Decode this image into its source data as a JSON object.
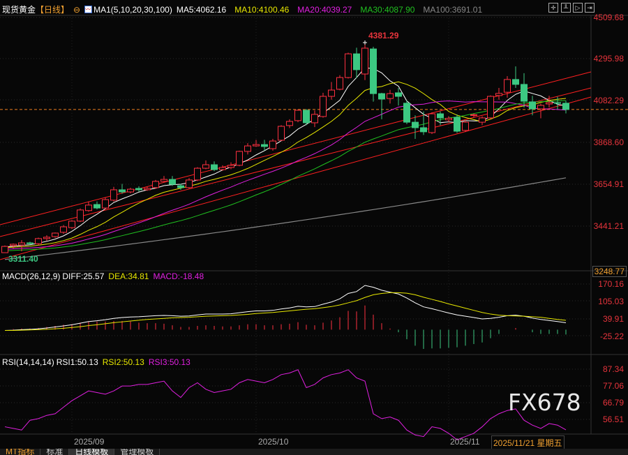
{
  "header": {
    "symbol": "现货黄金",
    "period": "【日线】",
    "ma_title": "MA1(5,10,20,30,100)",
    "ma5": "MA5:4062.16",
    "ma10": "MA10:4100.46",
    "ma20": "MA20:4039.27",
    "ma30": "MA30:4087.90",
    "ma100": "MA100:3691.01"
  },
  "toolbar": [
    "crosshair-icon",
    "chart-icon",
    "play-icon",
    "exit-icon"
  ],
  "price_axis": [
    "4509.68",
    "4295.98",
    "4082.29",
    "3868.60",
    "3654.91",
    "3441.21",
    "3248.77"
  ],
  "annotations": {
    "high": "4381.29",
    "low": "3311.40"
  },
  "macd": {
    "title": "MACD(26,12,9)",
    "diff": "DIFF:25.57",
    "dea": "DEA:34.81",
    "macd": "MACD:-18.48",
    "axis": [
      "170.16",
      "105.03",
      "39.91",
      "-25.22"
    ]
  },
  "rsi": {
    "title": "RSI(14,14,14)",
    "rsi1": "RSI1:50.13",
    "rsi2": "RSI2:50.13",
    "rsi3": "RSI3:50.13",
    "axis": [
      "87.34",
      "77.06",
      "66.79",
      "56.51"
    ]
  },
  "dates": [
    "2025/09",
    "2025/10",
    "2025/11"
  ],
  "cursor_date": "2025/11/21 星期五",
  "watermark": "FX678",
  "tabs": [
    "MT指标",
    "标准",
    "日线模板",
    "管理模板"
  ],
  "colors": {
    "up": "#ff3040",
    "down": "#3cc882",
    "ma5": "#ffffff",
    "ma10": "#e8e800",
    "ma20": "#e020e0",
    "ma30": "#20c020",
    "ma100": "#888888"
  },
  "chart_data": {
    "type": "candlestick",
    "ohlc": [
      [
        3309,
        3346,
        3311.4,
        3341
      ],
      [
        3345,
        3356,
        3330,
        3352
      ],
      [
        3348,
        3373,
        3316,
        3359
      ],
      [
        3359,
        3365,
        3350,
        3355
      ],
      [
        3355,
        3386,
        3345,
        3381
      ],
      [
        3381,
        3398,
        3370,
        3388
      ],
      [
        3391,
        3412,
        3385,
        3409
      ],
      [
        3413,
        3450,
        3405,
        3441
      ],
      [
        3437,
        3475,
        3430,
        3470
      ],
      [
        3470,
        3535,
        3465,
        3527
      ],
      [
        3524,
        3570,
        3518,
        3552
      ],
      [
        3555,
        3570,
        3530,
        3537
      ],
      [
        3537,
        3590,
        3530,
        3580
      ],
      [
        3577,
        3645,
        3570,
        3630
      ],
      [
        3630,
        3660,
        3610,
        3619
      ],
      [
        3619,
        3640,
        3612,
        3633
      ],
      [
        3637,
        3648,
        3620,
        3630
      ],
      [
        3630,
        3645,
        3625,
        3637
      ],
      [
        3641,
        3680,
        3635,
        3673
      ],
      [
        3673,
        3700,
        3668,
        3683
      ],
      [
        3683,
        3700,
        3650,
        3658
      ],
      [
        3651,
        3660,
        3630,
        3641
      ],
      [
        3641,
        3690,
        3636,
        3680
      ],
      [
        3680,
        3745,
        3675,
        3740
      ],
      [
        3740,
        3780,
        3735,
        3758
      ],
      [
        3758,
        3775,
        3725,
        3733
      ],
      [
        3733,
        3755,
        3728,
        3744
      ],
      [
        3744,
        3770,
        3735,
        3755
      ],
      [
        3755,
        3830,
        3750,
        3826
      ],
      [
        3826,
        3868,
        3810,
        3854
      ],
      [
        3854,
        3885,
        3850,
        3861
      ],
      [
        3861,
        3885,
        3830,
        3851
      ],
      [
        3840,
        3890,
        3830,
        3879
      ],
      [
        3883,
        3960,
        3878,
        3954
      ],
      [
        3958,
        3990,
        3945,
        3979
      ],
      [
        3983,
        4040,
        3975,
        4036
      ],
      [
        4036,
        4042,
        3960,
        3972
      ],
      [
        3972,
        4035,
        3950,
        4015
      ],
      [
        4004,
        4125,
        3998,
        4107
      ],
      [
        4107,
        4180,
        4090,
        4139
      ],
      [
        4143,
        4215,
        4138,
        4203
      ],
      [
        4203,
        4330,
        4198,
        4324
      ],
      [
        4324,
        4355,
        4200,
        4243
      ],
      [
        4221,
        4381.29,
        4190,
        4353
      ],
      [
        4349,
        4360,
        4080,
        4121
      ],
      [
        4121,
        4125,
        3990,
        4093
      ],
      [
        4096,
        4140,
        4070,
        4121
      ],
      [
        4125,
        4150,
        4060,
        4107
      ],
      [
        4072,
        4085,
        3965,
        3975
      ],
      [
        3975,
        4010,
        3890,
        3947
      ],
      [
        3947,
        4030,
        3910,
        3926
      ],
      [
        3922,
        4025,
        3915,
        4018
      ],
      [
        4018,
        4030,
        3960,
        3997
      ],
      [
        3987,
        4005,
        3975,
        3995
      ],
      [
        4000,
        4015,
        3920,
        3929
      ],
      [
        3933,
        3985,
        3925,
        3975
      ],
      [
        4011,
        4020,
        4000,
        4013
      ],
      [
        3975,
        4005,
        3960,
        3997
      ],
      [
        3997,
        4112,
        3990,
        4107
      ],
      [
        4111,
        4150,
        4090,
        4122
      ],
      [
        4128,
        4210,
        4100,
        4193
      ],
      [
        4193,
        4260,
        4150,
        4168
      ],
      [
        4168,
        4225,
        4050,
        4082
      ],
      [
        4079,
        4110,
        4010,
        4043
      ],
      [
        4043,
        4070,
        3995,
        4061
      ],
      [
        4068,
        4110,
        4050,
        4075
      ],
      [
        4075,
        4105,
        4040,
        4072
      ],
      [
        4072,
        4085,
        4020,
        4040
      ]
    ],
    "ma100_range": [
      3274,
      3691.01
    ],
    "ylim": [
      3248.77,
      4509.68
    ],
    "macd_diff": [
      -3,
      -2,
      0,
      1,
      3,
      6,
      10,
      14,
      18,
      24,
      30,
      33,
      37,
      42,
      45,
      47,
      48,
      50,
      52,
      53,
      52,
      50,
      51,
      55,
      58,
      58,
      58,
      59,
      63,
      67,
      70,
      70,
      72,
      77,
      81,
      87,
      85,
      86,
      95,
      103,
      115,
      135,
      142,
      165,
      158,
      147,
      140,
      133,
      118,
      100,
      85,
      78,
      70,
      62,
      55,
      50,
      45,
      40,
      42,
      46,
      52,
      54,
      50,
      43,
      38,
      34,
      30,
      25.57
    ],
    "macd_dea": [
      -3,
      -3,
      -2,
      -1,
      0,
      1,
      3,
      5,
      8,
      11,
      15,
      18,
      22,
      26,
      29,
      32,
      35,
      38,
      40,
      42,
      44,
      45,
      46,
      48,
      50,
      51,
      52,
      53,
      55,
      57,
      60,
      62,
      64,
      67,
      70,
      73,
      76,
      78,
      82,
      86,
      92,
      100,
      108,
      120,
      130,
      135,
      138,
      138,
      136,
      130,
      121,
      113,
      105,
      96,
      88,
      80,
      72,
      64,
      58,
      54,
      52,
      51,
      50,
      48,
      46,
      42,
      38,
      34.81
    ],
    "rsi": [
      52,
      51,
      50,
      56,
      57,
      59,
      60,
      64,
      68,
      71,
      74,
      73,
      72,
      74,
      77,
      77,
      78,
      78,
      79,
      80,
      74,
      70,
      76,
      79,
      75,
      73,
      74,
      75,
      79,
      81,
      80,
      79,
      81,
      84,
      85,
      87,
      76,
      78,
      82,
      84,
      85,
      87,
      82,
      80,
      60,
      57,
      58,
      56,
      50,
      47,
      46,
      52,
      51,
      48,
      44,
      46,
      48,
      52,
      57,
      60,
      62,
      63,
      56,
      53,
      51,
      54,
      53,
      50.13
    ]
  }
}
